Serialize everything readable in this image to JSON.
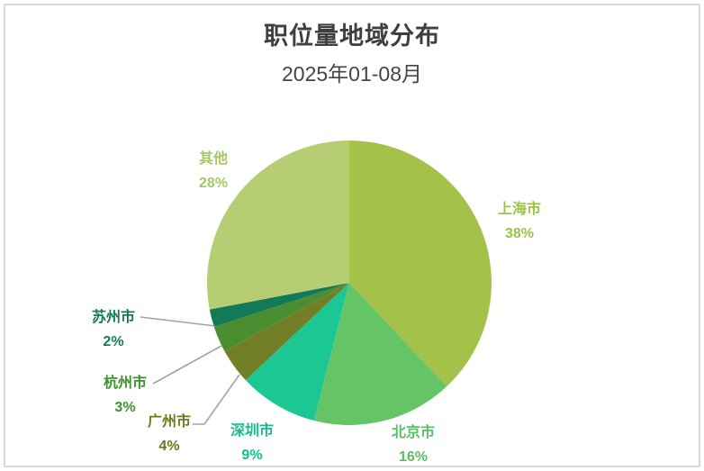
{
  "chart_data": {
    "type": "pie",
    "title": "职位量地域分布",
    "subtitle": "2025年01-08月",
    "unit": "%",
    "direction": "clockwise",
    "start_angle_deg": 0,
    "legend_position": "none",
    "labels_outside": true,
    "leader_line_color": "#a3a3a3",
    "slices": [
      {
        "label": "上海市",
        "value": 38,
        "pct": "38%",
        "color": "#a4c24a",
        "label_color": "#9cc442"
      },
      {
        "label": "北京市",
        "value": 16,
        "pct": "16%",
        "color": "#65c566",
        "label_color": "#5bbf63"
      },
      {
        "label": "深圳市",
        "value": 9,
        "pct": "9%",
        "color": "#1bc893",
        "label_color": "#11bf8c"
      },
      {
        "label": "广州市",
        "value": 4,
        "pct": "4%",
        "color": "#737f27",
        "label_color": "#6b7a1e"
      },
      {
        "label": "杭州市",
        "value": 3,
        "pct": "3%",
        "color": "#4b8e32",
        "label_color": "#41902f"
      },
      {
        "label": "苏州市",
        "value": 2,
        "pct": "2%",
        "color": "#127a56",
        "label_color": "#137a52"
      },
      {
        "label": "其他",
        "value": 28,
        "pct": "28%",
        "color": "#b6cd74",
        "label_color": "#a9c765"
      }
    ],
    "title_color": "#3f3f3f",
    "subtitle_color": "#454545"
  }
}
